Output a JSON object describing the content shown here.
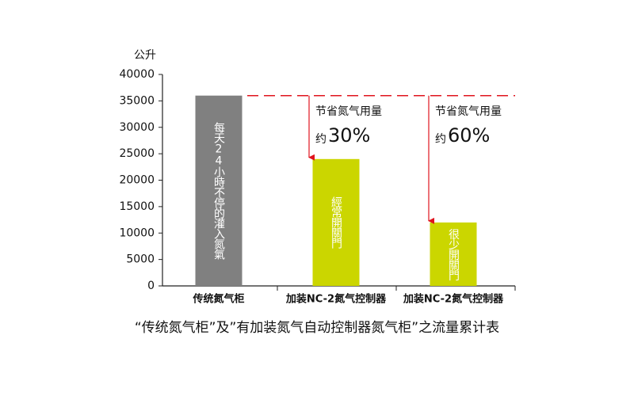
{
  "chart_data": {
    "type": "bar",
    "title": "“传统氮气柜”及”有加装氮气自动控制器氮气柜”之流量累计表",
    "y_unit": "公升",
    "categories": [
      "传统氮气柜",
      "加装NC-2氮气控制器",
      "加装NC-2氮气控制器"
    ],
    "values": [
      36000,
      24000,
      12000
    ],
    "colors": [
      "#808080",
      "#cbd600",
      "#cbd600"
    ],
    "label_colors": [
      "#111111",
      "#1a7a3a",
      "#1a7a3a"
    ],
    "bar_labels": [
      "每天24小時不停的灌入氮氣",
      "經常開關門",
      "很少開關門"
    ],
    "annotations": [
      {
        "text": "节省氮气用量",
        "prefix": "约",
        "value": "30%"
      },
      {
        "text": "节省氮气用量",
        "prefix": "约",
        "value": "60%"
      }
    ],
    "annotation_color": "#e0141e",
    "ylim": [
      0,
      40000
    ],
    "yticks": [
      0,
      5000,
      10000,
      15000,
      20000,
      25000,
      30000,
      35000,
      40000
    ]
  }
}
